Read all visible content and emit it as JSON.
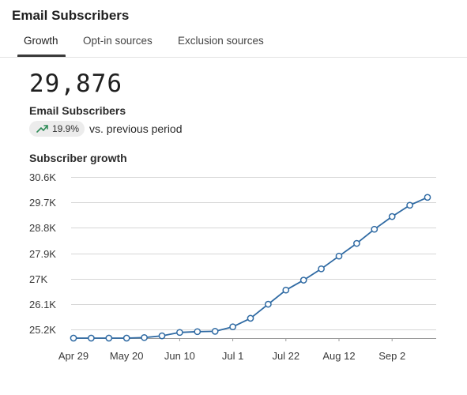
{
  "header": {
    "title": "Email Subscribers"
  },
  "tabs": [
    {
      "label": "Growth",
      "active": true
    },
    {
      "label": "Opt-in sources",
      "active": false
    },
    {
      "label": "Exclusion sources",
      "active": false
    }
  ],
  "metric": {
    "value": "29,876",
    "label": "Email Subscribers",
    "change": "19.9%",
    "change_direction": "up",
    "comparison": "vs. previous period",
    "trend_icon": "trending-up-icon"
  },
  "colors": {
    "line": "#2f6aa3",
    "trend_up": "#2e8b57",
    "badge_bg": "#ececec"
  },
  "chart_data": {
    "type": "line",
    "title": "Subscriber growth",
    "xlabel": "",
    "ylabel": "",
    "y_ticks": [
      "30.6K",
      "29.7K",
      "28.8K",
      "27.9K",
      "27K",
      "26.1K",
      "25.2K"
    ],
    "y_tick_values": [
      30600,
      29700,
      28800,
      27900,
      27000,
      26100,
      25200
    ],
    "ylim": [
      24900,
      30600
    ],
    "x_ticks": [
      "Apr 29",
      "May 20",
      "Jun 10",
      "Jul 1",
      "Jul 22",
      "Aug 12",
      "Sep 2"
    ],
    "grid": true,
    "series": [
      {
        "values": [
          24900,
          24900,
          24900,
          24900,
          24920,
          24980,
          25100,
          25130,
          25140,
          25300,
          25600,
          26100,
          26600,
          26950,
          27350,
          27800,
          28250,
          28750,
          29200,
          29600,
          29880
        ]
      }
    ]
  }
}
